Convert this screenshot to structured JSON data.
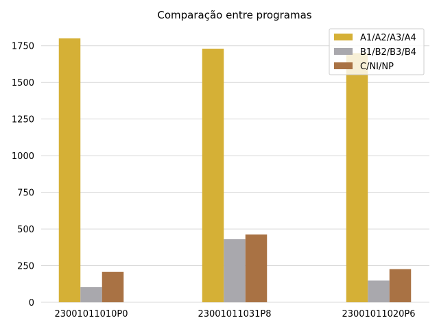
{
  "chart_data": {
    "type": "bar",
    "title": "Comparação entre programas",
    "xlabel": "",
    "ylabel": "",
    "categories": [
      "23001011010P0",
      "23001011031P8",
      "23001011020P6"
    ],
    "series": [
      {
        "name": "A1/A2/A3/A4",
        "color": "#d5b036",
        "values": [
          1800,
          1730,
          1700
        ]
      },
      {
        "name": "B1/B2/B3/B4",
        "color": "#a9a8ad",
        "values": [
          103,
          430,
          148
        ]
      },
      {
        "name": "C/NI/NP",
        "color": "#a97244",
        "values": [
          207,
          462,
          226
        ]
      }
    ],
    "ylim": [
      0,
      1875
    ],
    "yticks": [
      0,
      250,
      500,
      750,
      1000,
      1250,
      1500,
      1750
    ],
    "grid": true,
    "legend_position": "top-right"
  }
}
